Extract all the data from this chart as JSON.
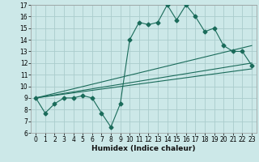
{
  "title": "",
  "xlabel": "Humidex (Indice chaleur)",
  "background_color": "#cce8e8",
  "grid_color": "#aacccc",
  "line_color": "#1a6b5a",
  "xlim": [
    -0.5,
    23.5
  ],
  "ylim": [
    6,
    17
  ],
  "xticks": [
    0,
    1,
    2,
    3,
    4,
    5,
    6,
    7,
    8,
    9,
    10,
    11,
    12,
    13,
    14,
    15,
    16,
    17,
    18,
    19,
    20,
    21,
    22,
    23
  ],
  "yticks": [
    6,
    7,
    8,
    9,
    10,
    11,
    12,
    13,
    14,
    15,
    16,
    17
  ],
  "series1_x": [
    0,
    1,
    2,
    3,
    4,
    5,
    6,
    7,
    8,
    9,
    10,
    11,
    12,
    13,
    14,
    15,
    16,
    17,
    18,
    19,
    20,
    21,
    22,
    23
  ],
  "series1_y": [
    9.0,
    7.7,
    8.5,
    9.0,
    9.0,
    9.2,
    9.0,
    7.7,
    6.5,
    8.5,
    14.0,
    15.5,
    15.3,
    15.5,
    17.0,
    15.7,
    17.0,
    16.0,
    14.7,
    15.0,
    13.5,
    13.0,
    13.0,
    11.8
  ],
  "series2_x": [
    0,
    23
  ],
  "series2_y": [
    9.0,
    13.5
  ],
  "series3_x": [
    0,
    23
  ],
  "series3_y": [
    9.0,
    12.0
  ],
  "series4_x": [
    0,
    23
  ],
  "series4_y": [
    9.0,
    11.5
  ],
  "marker": "D",
  "markersize": 2.5,
  "linewidth": 0.8,
  "tick_fontsize": 5.5,
  "xlabel_fontsize": 6.5
}
